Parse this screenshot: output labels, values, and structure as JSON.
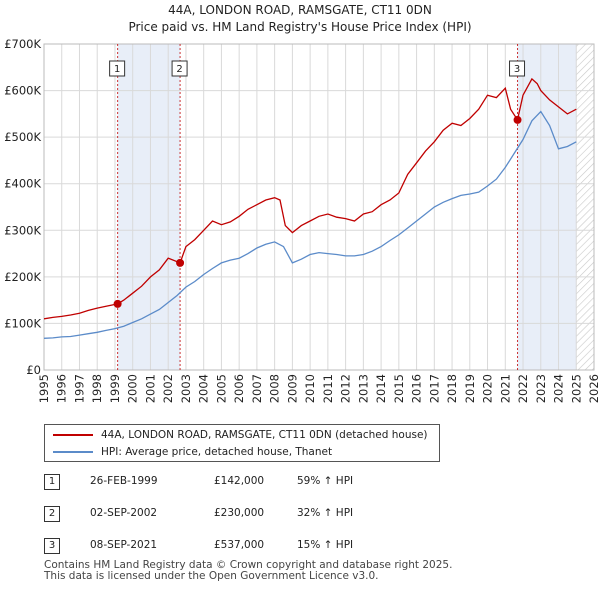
{
  "title": {
    "line1": "44A, LONDON ROAD, RAMSGATE, CT11 0DN",
    "line2": "Price paid vs. HM Land Registry's House Price Index (HPI)"
  },
  "legend": {
    "property_label": "44A, LONDON ROAD, RAMSGATE, CT11 0DN (detached house)",
    "hpi_label": "HPI: Average price, detached house, Thanet"
  },
  "colors": {
    "property": "#c00000",
    "hpi": "#5b8bc9",
    "shade": "#e8eef8"
  },
  "sales": [
    {
      "num": "1",
      "date": "26-FEB-1999",
      "price": "£142,000",
      "hpi_change": "59% ↑ HPI"
    },
    {
      "num": "2",
      "date": "02-SEP-2002",
      "price": "£230,000",
      "hpi_change": "32% ↑ HPI"
    },
    {
      "num": "3",
      "date": "08-SEP-2021",
      "price": "£537,000",
      "hpi_change": "15% ↑ HPI"
    }
  ],
  "footer": {
    "line1": "Contains HM Land Registry data © Crown copyright and database right 2025.",
    "line2": "This data is licensed under the Open Government Licence v3.0."
  },
  "chart_data": {
    "type": "line",
    "title": "44A, LONDON ROAD, RAMSGATE, CT11 0DN — Price paid vs. HM Land Registry's House Price Index (HPI)",
    "xlim": [
      1995,
      2026
    ],
    "ylim": [
      0,
      700000
    ],
    "x_ticks": [
      "1995",
      "1996",
      "1997",
      "1998",
      "1999",
      "2000",
      "2001",
      "2002",
      "2003",
      "2004",
      "2005",
      "2006",
      "2007",
      "2008",
      "2009",
      "2010",
      "2011",
      "2012",
      "2013",
      "2014",
      "2015",
      "2016",
      "2017",
      "2018",
      "2019",
      "2020",
      "2021",
      "2022",
      "2023",
      "2024",
      "2025",
      "2026"
    ],
    "y_ticks": [
      {
        "value": 0,
        "label": "£0"
      },
      {
        "value": 100000,
        "label": "£100K"
      },
      {
        "value": 200000,
        "label": "£200K"
      },
      {
        "value": 300000,
        "label": "£300K"
      },
      {
        "value": 400000,
        "label": "£400K"
      },
      {
        "value": 500000,
        "label": "£500K"
      },
      {
        "value": 600000,
        "label": "£600K"
      },
      {
        "value": 700000,
        "label": "£700K"
      }
    ],
    "shaded_ranges": [
      [
        1999.15,
        2002.67
      ],
      [
        2021.69,
        2025.0
      ]
    ],
    "hatched_from": 2025.0,
    "sale_markers": [
      {
        "label": "1",
        "x": 1999.15,
        "y": 142000
      },
      {
        "label": "2",
        "x": 2002.67,
        "y": 230000
      },
      {
        "label": "3",
        "x": 2021.69,
        "y": 537000
      }
    ],
    "series": [
      {
        "name": "44A, LONDON ROAD, RAMSGATE, CT11 0DN (detached house)",
        "x": [
          1995,
          1995.5,
          1996,
          1996.5,
          1997,
          1997.5,
          1998,
          1998.5,
          1999.15,
          1999.5,
          2000,
          2000.5,
          2001,
          2001.5,
          2002,
          2002.67,
          2003,
          2003.5,
          2004,
          2004.5,
          2005,
          2005.5,
          2006,
          2006.5,
          2007,
          2007.5,
          2008,
          2008.3,
          2008.6,
          2009,
          2009.5,
          2010,
          2010.5,
          2011,
          2011.5,
          2012,
          2012.5,
          2013,
          2013.5,
          2014,
          2014.5,
          2015,
          2015.5,
          2016,
          2016.5,
          2017,
          2017.5,
          2018,
          2018.5,
          2019,
          2019.5,
          2020,
          2020.5,
          2021,
          2021.3,
          2021.69,
          2022,
          2022.5,
          2022.8,
          2023,
          2023.5,
          2024,
          2024.5,
          2025
        ],
        "y": [
          110000,
          113000,
          115000,
          118000,
          122000,
          128000,
          133000,
          137000,
          142000,
          150000,
          165000,
          180000,
          200000,
          215000,
          240000,
          230000,
          265000,
          280000,
          300000,
          320000,
          312000,
          318000,
          330000,
          345000,
          355000,
          365000,
          370000,
          365000,
          310000,
          295000,
          310000,
          320000,
          330000,
          335000,
          328000,
          325000,
          320000,
          335000,
          340000,
          355000,
          365000,
          380000,
          420000,
          445000,
          470000,
          490000,
          515000,
          530000,
          525000,
          540000,
          560000,
          590000,
          585000,
          605000,
          560000,
          537000,
          590000,
          625000,
          615000,
          600000,
          580000,
          565000,
          550000,
          560000
        ]
      },
      {
        "name": "HPI: Average price, detached house, Thanet",
        "x": [
          1995,
          1995.5,
          1996,
          1996.5,
          1997,
          1997.5,
          1998,
          1998.5,
          1999,
          1999.5,
          2000,
          2000.5,
          2001,
          2001.5,
          2002,
          2002.5,
          2003,
          2003.5,
          2004,
          2004.5,
          2005,
          2005.5,
          2006,
          2006.5,
          2007,
          2007.5,
          2008,
          2008.5,
          2009,
          2009.5,
          2010,
          2010.5,
          2011,
          2011.5,
          2012,
          2012.5,
          2013,
          2013.5,
          2014,
          2014.5,
          2015,
          2015.5,
          2016,
          2016.5,
          2017,
          2017.5,
          2018,
          2018.5,
          2019,
          2019.5,
          2020,
          2020.5,
          2021,
          2021.5,
          2022,
          2022.5,
          2023,
          2023.5,
          2024,
          2024.5,
          2025
        ],
        "y": [
          68000,
          69000,
          71000,
          72000,
          75000,
          78000,
          81000,
          85000,
          89000,
          94000,
          102000,
          110000,
          120000,
          130000,
          145000,
          160000,
          178000,
          190000,
          205000,
          218000,
          230000,
          236000,
          240000,
          250000,
          262000,
          270000,
          275000,
          265000,
          230000,
          238000,
          248000,
          252000,
          250000,
          248000,
          245000,
          245000,
          248000,
          255000,
          265000,
          278000,
          290000,
          305000,
          320000,
          335000,
          350000,
          360000,
          368000,
          375000,
          378000,
          382000,
          395000,
          410000,
          435000,
          465000,
          495000,
          535000,
          555000,
          525000,
          475000,
          480000,
          490000
        ]
      }
    ]
  }
}
